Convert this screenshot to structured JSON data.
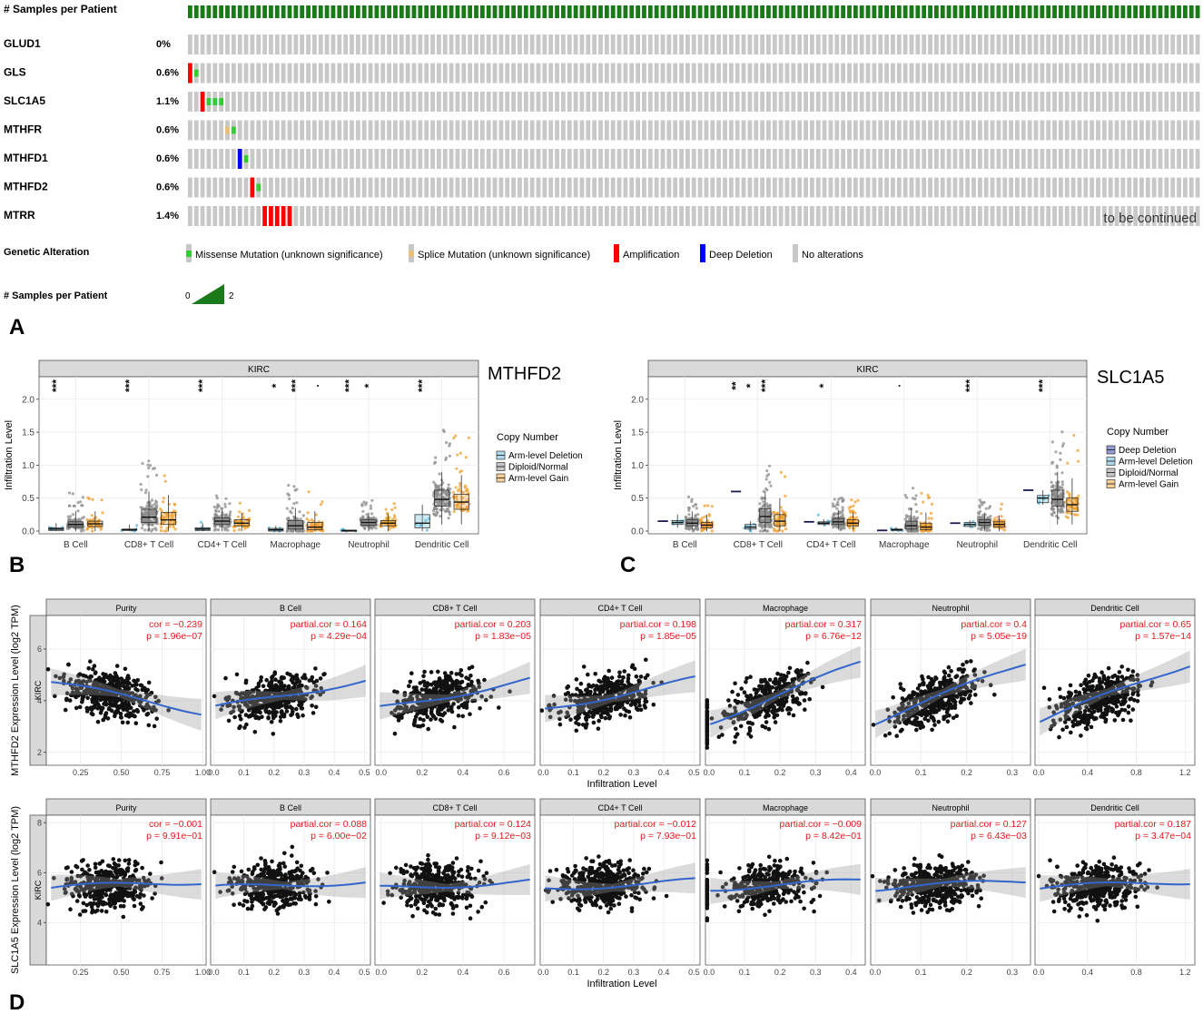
{
  "oncoprint": {
    "samples_label": "# Samples per Patient",
    "genes": [
      {
        "name": "GLUD1",
        "pct": "0%",
        "alts": []
      },
      {
        "name": "GLS",
        "pct": "0.6%",
        "alts": [
          {
            "col": 0,
            "type": "amp"
          },
          {
            "col": 1,
            "type": "missense"
          }
        ]
      },
      {
        "name": "SLC1A5",
        "pct": "1.1%",
        "alts": [
          {
            "col": 2,
            "type": "amp"
          },
          {
            "col": 3,
            "type": "missense"
          },
          {
            "col": 4,
            "type": "missense"
          },
          {
            "col": 5,
            "type": "missense"
          }
        ]
      },
      {
        "name": "MTHFR",
        "pct": "0.6%",
        "alts": [
          {
            "col": 6,
            "type": "splice"
          },
          {
            "col": 7,
            "type": "missense"
          }
        ]
      },
      {
        "name": "MTHFD1",
        "pct": "0.6%",
        "alts": [
          {
            "col": 8,
            "type": "deep"
          },
          {
            "col": 9,
            "type": "missense"
          }
        ]
      },
      {
        "name": "MTHFD2",
        "pct": "0.6%",
        "alts": [
          {
            "col": 10,
            "type": "amp"
          },
          {
            "col": 11,
            "type": "missense"
          }
        ]
      },
      {
        "name": "MTRR",
        "pct": "1.4%",
        "alts": [
          {
            "col": 12,
            "type": "amp"
          },
          {
            "col": 13,
            "type": "amp"
          },
          {
            "col": 14,
            "type": "amp"
          },
          {
            "col": 15,
            "type": "amp"
          },
          {
            "col": 16,
            "type": "amp"
          }
        ]
      }
    ],
    "continued": "to be continued",
    "legend_title": "Genetic Alteration",
    "legend": [
      {
        "label": "Missense Mutation (unknown significance)",
        "type": "missense"
      },
      {
        "label": "Splice Mutation (unknown significance)",
        "type": "splice"
      },
      {
        "label": "Amplification",
        "type": "amp"
      },
      {
        "label": "Deep Deletion",
        "type": "deep"
      },
      {
        "label": "No alterations",
        "type": "none"
      }
    ],
    "spp_label": "# Samples per Patient",
    "spp_min": "0",
    "spp_max": "2",
    "colors": {
      "amp": "#ff0000",
      "deep": "#0000ff",
      "missense": "#33cc33",
      "splice": "#e8c07a",
      "none": "#c8c8c8",
      "samples": "#1a7a1a"
    }
  },
  "panel_labels": {
    "a": "A",
    "b": "B",
    "c": "C",
    "d": "D"
  },
  "chart_data": [
    {
      "id": "B",
      "type": "box",
      "title": "MTHFD2",
      "strip": "KIRC",
      "ylabel": "Infiltration Level",
      "ylim": [
        0,
        2.3
      ],
      "yticks": [
        "0.0",
        "0.5",
        "1.0",
        "1.5",
        "2.0"
      ],
      "categories": [
        "B Cell",
        "CD8+ T Cell",
        "CD4+ T Cell",
        "Macrophage",
        "Neutrophil",
        "Dendritic Cell"
      ],
      "legend_title": "Copy Number",
      "groups": [
        {
          "name": "Arm-level Deletion",
          "color": "#5bb8d8"
        },
        {
          "name": "Diploid/Normal",
          "color": "#8c8c8c"
        },
        {
          "name": "Arm-level Gain",
          "color": "#f0a030"
        }
      ],
      "boxes": [
        [
          [
            0,
            0.01,
            0.03,
            0.05,
            0.12
          ],
          [
            0,
            0.06,
            0.1,
            0.14,
            0.3
          ],
          [
            0,
            0.07,
            0.11,
            0.15,
            0.3
          ]
        ],
        [
          [
            0,
            0.01,
            0.02,
            0.03,
            0.1
          ],
          [
            0,
            0.13,
            0.21,
            0.33,
            0.6
          ],
          [
            0,
            0.1,
            0.17,
            0.28,
            0.55
          ]
        ],
        [
          [
            0,
            0.01,
            0.03,
            0.05,
            0.12
          ],
          [
            0,
            0.1,
            0.15,
            0.2,
            0.32
          ],
          [
            0,
            0.08,
            0.12,
            0.17,
            0.28
          ]
        ],
        [
          [
            0,
            0.0,
            0.02,
            0.04,
            0.08
          ],
          [
            0,
            0.03,
            0.08,
            0.16,
            0.35
          ],
          [
            0,
            0.02,
            0.06,
            0.13,
            0.3
          ]
        ],
        [
          [
            0,
            0.0,
            0.01,
            0.01,
            0.02
          ],
          [
            0,
            0.09,
            0.13,
            0.17,
            0.28
          ],
          [
            0,
            0.08,
            0.12,
            0.16,
            0.26
          ]
        ],
        [
          [
            0,
            0.05,
            0.12,
            0.25,
            0.4
          ],
          [
            0.1,
            0.38,
            0.48,
            0.62,
            0.9
          ],
          [
            0.1,
            0.33,
            0.44,
            0.56,
            0.85
          ]
        ]
      ],
      "sig": [
        [
          "***",
          "",
          ""
        ],
        [
          "***",
          "",
          ""
        ],
        [
          "***",
          "",
          ""
        ],
        [
          "*",
          "***",
          "."
        ],
        [
          "***",
          "*",
          ""
        ],
        [
          "***",
          "",
          ""
        ]
      ]
    },
    {
      "id": "C",
      "type": "box",
      "title": "SLC1A5",
      "strip": "KIRC",
      "ylabel": "Infiltration Level",
      "ylim": [
        0,
        2.3
      ],
      "yticks": [
        "0.0",
        "0.5",
        "1.0",
        "1.5",
        "2.0"
      ],
      "categories": [
        "B Cell",
        "CD8+ T Cell",
        "CD4+ T Cell",
        "Macrophage",
        "Neutrophil",
        "Dendritic Cell"
      ],
      "legend_title": "Copy Number",
      "groups": [
        {
          "name": "Deep Deletion",
          "color": "#2b3aa8"
        },
        {
          "name": "Arm-level Deletion",
          "color": "#5bb8d8"
        },
        {
          "name": "Diploid/Normal",
          "color": "#8c8c8c"
        },
        {
          "name": "Arm-level Gain",
          "color": "#f0a030"
        }
      ],
      "boxes": [
        [
          [
            0.15,
            0.15,
            0.15,
            0.15,
            0.15
          ],
          [
            0.05,
            0.1,
            0.13,
            0.16,
            0.25
          ],
          [
            0.02,
            0.08,
            0.12,
            0.17,
            0.3
          ],
          [
            0,
            0.05,
            0.09,
            0.13,
            0.25
          ]
        ],
        [
          [
            0.6,
            0.6,
            0.6,
            0.6,
            0.6
          ],
          [
            0,
            0.03,
            0.06,
            0.1,
            0.15
          ],
          [
            0,
            0.13,
            0.22,
            0.34,
            0.6
          ],
          [
            0,
            0.08,
            0.15,
            0.25,
            0.5
          ]
        ],
        [
          [
            0.14,
            0.14,
            0.14,
            0.14,
            0.14
          ],
          [
            0.08,
            0.1,
            0.12,
            0.14,
            0.18
          ],
          [
            0.02,
            0.1,
            0.14,
            0.19,
            0.32
          ],
          [
            0.02,
            0.08,
            0.12,
            0.17,
            0.28
          ]
        ],
        [
          [
            0.01,
            0.01,
            0.01,
            0.01,
            0.01
          ],
          [
            0,
            0.01,
            0.02,
            0.03,
            0.05
          ],
          [
            0,
            0.03,
            0.08,
            0.15,
            0.35
          ],
          [
            0,
            0.02,
            0.06,
            0.12,
            0.28
          ]
        ],
        [
          [
            0.12,
            0.12,
            0.12,
            0.12,
            0.12
          ],
          [
            0.05,
            0.07,
            0.1,
            0.13,
            0.16
          ],
          [
            0,
            0.09,
            0.13,
            0.17,
            0.28
          ],
          [
            0,
            0.06,
            0.1,
            0.14,
            0.24
          ]
        ],
        [
          [
            0.62,
            0.62,
            0.62,
            0.62,
            0.62
          ],
          [
            0.4,
            0.43,
            0.5,
            0.54,
            0.62
          ],
          [
            0.1,
            0.38,
            0.48,
            0.62,
            0.9
          ],
          [
            0.1,
            0.3,
            0.4,
            0.5,
            0.8
          ]
        ]
      ],
      "sig": [
        [
          "",
          "",
          "",
          ""
        ],
        [
          "**",
          "*",
          "***",
          ""
        ],
        [
          "",
          "*",
          "",
          ""
        ],
        [
          "",
          ".",
          "",
          ""
        ],
        [
          "",
          "***",
          "",
          ""
        ],
        [
          "",
          "***",
          "",
          ""
        ]
      ]
    },
    {
      "id": "D",
      "type": "scatter",
      "rows": [
        {
          "gene": "MTHFD2",
          "ylabel": "MTHFD2 Expression Level (log2 TPM)",
          "strip": "KIRC",
          "yticks": [
            2,
            4,
            6
          ],
          "ylim": [
            1.5,
            7.3
          ]
        },
        {
          "gene": "SLC1A5",
          "ylabel": "SLC1A5 Expression Level (log2 TPM)",
          "strip": "KIRC",
          "yticks": [
            4,
            6,
            8
          ],
          "ylim": [
            2.3,
            8.3
          ]
        }
      ],
      "xlabel": "Infiltration Level",
      "panels": [
        {
          "name": "Purity",
          "xlim": [
            0.04,
            1.02
          ],
          "xticks": [
            "0.25",
            "0.50",
            "0.75",
            "1.00"
          ],
          "xtickvals": [
            0.25,
            0.5,
            0.75,
            1.0
          ],
          "stats": [
            {
              "cor": "cor = −0.239",
              "p": "p = 1.96e−07"
            },
            {
              "cor": "cor = −0.001",
              "p": "p = 9.91e−01"
            }
          ]
        },
        {
          "name": "B Cell",
          "xlim": [
            -0.01,
            0.52
          ],
          "xticks": [
            "0.0",
            "0.1",
            "0.2",
            "0.3",
            "0.4",
            "0.5"
          ],
          "xtickvals": [
            0,
            0.1,
            0.2,
            0.3,
            0.4,
            0.5
          ],
          "stats": [
            {
              "cor": "partial.cor = 0.164",
              "p": "p = 4.29e−04"
            },
            {
              "cor": "partial.cor = 0.088",
              "p": "p = 6.00e−02"
            }
          ]
        },
        {
          "name": "CD8+ T Cell",
          "xlim": [
            -0.03,
            0.75
          ],
          "xticks": [
            "0.0",
            "0.2",
            "0.4",
            "0.6"
          ],
          "xtickvals": [
            0,
            0.2,
            0.4,
            0.6
          ],
          "stats": [
            {
              "cor": "partial.cor = 0.203",
              "p": "p = 1.83e−05"
            },
            {
              "cor": "partial.cor = 0.124",
              "p": "p = 9.12e−03"
            }
          ]
        },
        {
          "name": "CD4+ T Cell",
          "xlim": [
            -0.01,
            0.52
          ],
          "xticks": [
            "0.0",
            "0.1",
            "0.2",
            "0.3",
            "0.4",
            "0.5"
          ],
          "xtickvals": [
            0,
            0.1,
            0.2,
            0.3,
            0.4,
            0.5
          ],
          "stats": [
            {
              "cor": "partial.cor = 0.198",
              "p": "p = 1.85e−05"
            },
            {
              "cor": "partial.cor = −0.012",
              "p": "p = 7.93e−01"
            }
          ]
        },
        {
          "name": "Macrophage",
          "xlim": [
            -0.01,
            0.44
          ],
          "xticks": [
            "0.0",
            "0.1",
            "0.2",
            "0.3",
            "0.4"
          ],
          "xtickvals": [
            0,
            0.1,
            0.2,
            0.3,
            0.4
          ],
          "stats": [
            {
              "cor": "partial.cor = 0.317",
              "p": "p = 6.76e−12"
            },
            {
              "cor": "partial.cor = −0.009",
              "p": "p = 8.42e−01"
            }
          ]
        },
        {
          "name": "Neutrophil",
          "xlim": [
            -0.01,
            0.34
          ],
          "xticks": [
            "0.0",
            "0.1",
            "0.2",
            "0.3"
          ],
          "xtickvals": [
            0,
            0.1,
            0.2,
            0.3
          ],
          "stats": [
            {
              "cor": "partial.cor = 0.4",
              "p": "p = 5.05e−19"
            },
            {
              "cor": "partial.cor = 0.127",
              "p": "p = 6.43e−03"
            }
          ]
        },
        {
          "name": "Dendritic Cell",
          "xlim": [
            -0.03,
            1.28
          ],
          "xticks": [
            "0.0",
            "0.4",
            "0.8",
            "1.2"
          ],
          "xtickvals": [
            0,
            0.4,
            0.8,
            1.2
          ],
          "stats": [
            {
              "cor": "partial.cor = 0.65",
              "p": "p = 1.57e−14"
            },
            {
              "cor": "partial.cor = 0.187",
              "p": "p = 3.47e−04"
            }
          ]
        }
      ]
    }
  ]
}
